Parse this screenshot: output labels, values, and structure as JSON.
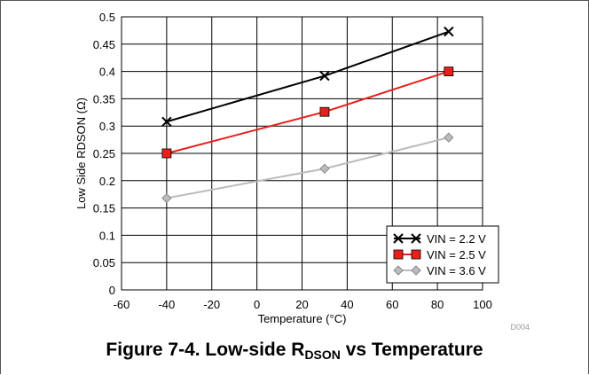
{
  "chart_data": {
    "type": "line",
    "xlabel": "Temperature (°C)",
    "ylabel": "Low Side RDSON (Ω)",
    "xlim": [
      -60,
      100
    ],
    "ylim": [
      0,
      0.5
    ],
    "xticks": [
      -60,
      -40,
      -20,
      0,
      20,
      40,
      60,
      80,
      100
    ],
    "yticks": [
      0,
      0.05,
      0.1,
      0.15,
      0.2,
      0.25,
      0.3,
      0.35,
      0.4,
      0.45,
      0.5
    ],
    "grid": true,
    "legend_position": "bottom-right",
    "code": "D004",
    "series": [
      {
        "name": "VIN = 2.2 V",
        "color": "#000000",
        "marker": "x",
        "x": [
          -40,
          30,
          85
        ],
        "y": [
          0.308,
          0.392,
          0.473
        ]
      },
      {
        "name": "VIN = 2.5 V",
        "color": "#e8201c",
        "marker": "square",
        "x": [
          -40,
          30,
          85
        ],
        "y": [
          0.25,
          0.326,
          0.4
        ]
      },
      {
        "name": "VIN = 3.6 V",
        "color": "#bbbbbb",
        "marker": "diamond",
        "x": [
          -40,
          30,
          85
        ],
        "y": [
          0.168,
          0.222,
          0.279
        ]
      }
    ]
  },
  "caption": {
    "main": "Figure 7-4. Low-side R",
    "sub": "DSON",
    "rest": " vs Temperature"
  }
}
